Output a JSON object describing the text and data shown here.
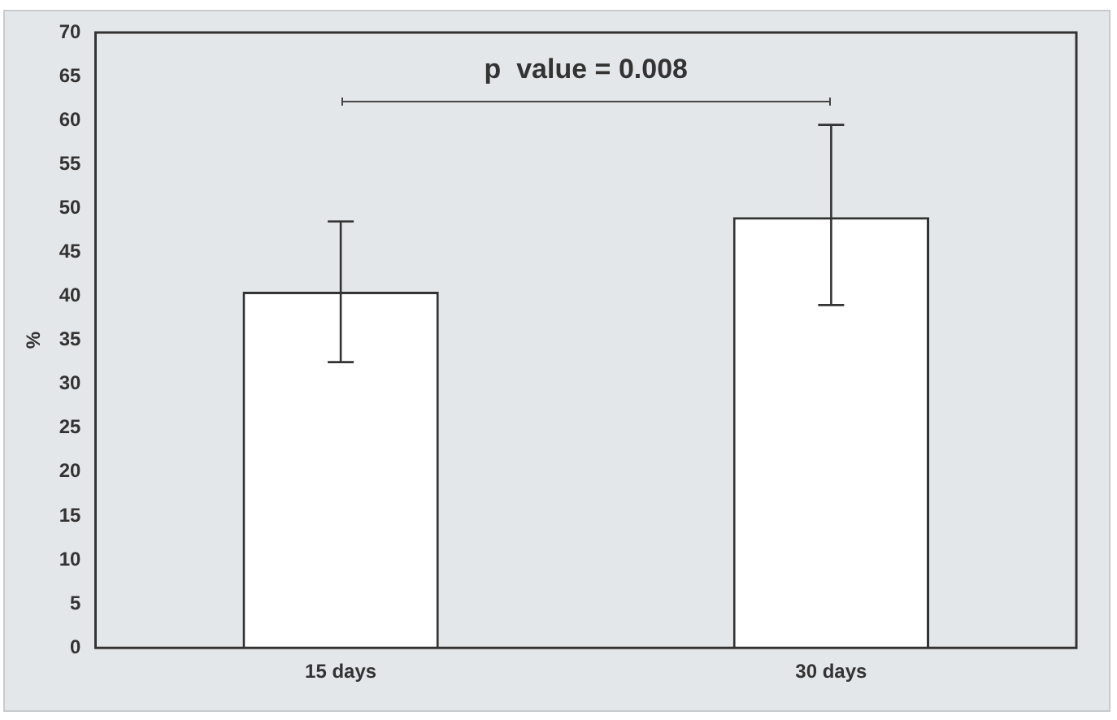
{
  "chart_data": {
    "type": "bar",
    "categories": [
      "15 days",
      "30 days"
    ],
    "values": [
      40.5,
      49
    ],
    "errors": [
      [
        32.5,
        48.5
      ],
      [
        39,
        59.5
      ]
    ],
    "color": "#ffffff",
    "ylabel": "%",
    "ylim": [
      0,
      70
    ],
    "yticks": [
      0,
      5,
      10,
      15,
      20,
      25,
      30,
      35,
      40,
      45,
      50,
      55,
      60,
      65,
      70
    ],
    "annotations": [
      "p  value = 0.008"
    ],
    "grid": false,
    "legend": false
  }
}
